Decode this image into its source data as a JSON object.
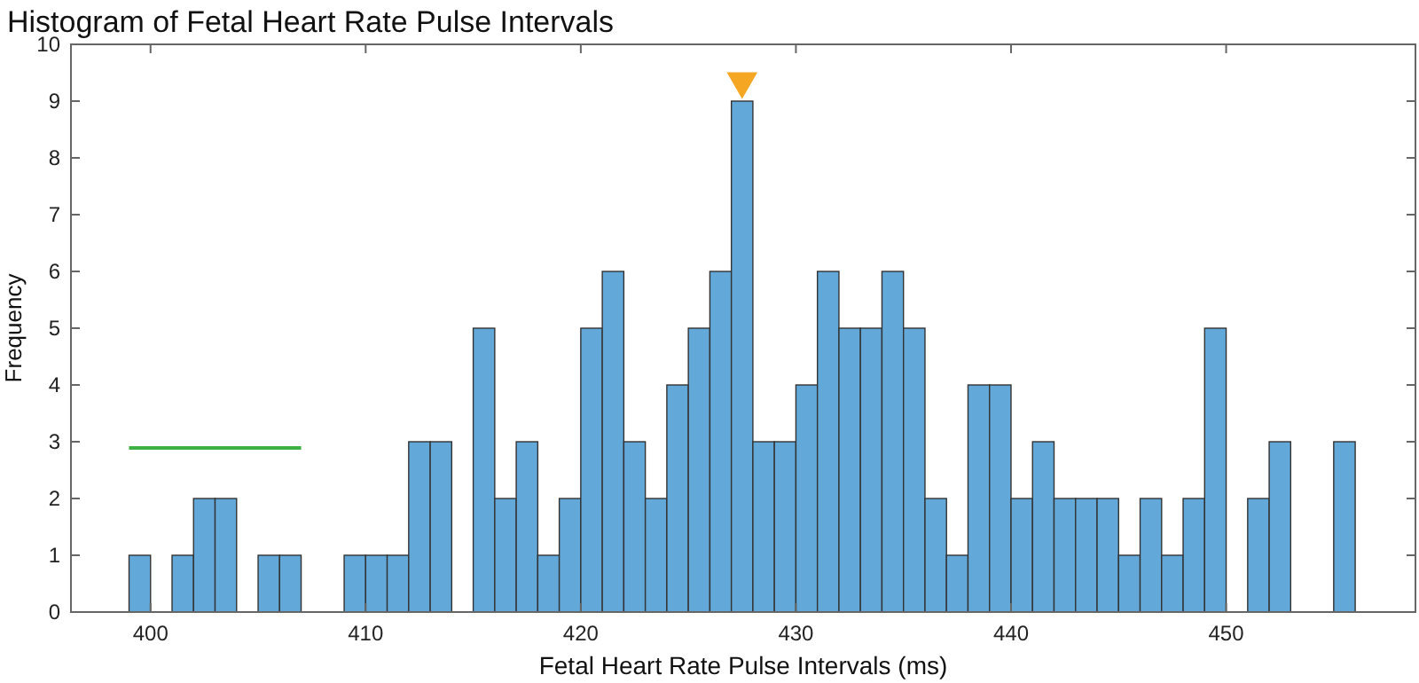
{
  "chart_data": {
    "type": "histogram",
    "title": "Histogram of Fetal Heart Rate Pulse Intervals",
    "xlabel": "Fetal Heart Rate Pulse Intervals (ms)",
    "ylabel": "Frequency",
    "bins": [
      399,
      400,
      401,
      402,
      403,
      404,
      405,
      406,
      407,
      408,
      409,
      410,
      411,
      412,
      413,
      414,
      415,
      416,
      417,
      418,
      419,
      420,
      421,
      422,
      423,
      424,
      425,
      426,
      427,
      428,
      429,
      430,
      431,
      432,
      433,
      434,
      435,
      436,
      437,
      438,
      439,
      440,
      441,
      442,
      443,
      444,
      445,
      446,
      447,
      448,
      449,
      450,
      451,
      452,
      453,
      454,
      455,
      456
    ],
    "values": [
      1,
      0,
      1,
      2,
      2,
      0,
      1,
      1,
      0,
      0,
      1,
      1,
      1,
      3,
      3,
      0,
      5,
      2,
      3,
      1,
      2,
      5,
      6,
      3,
      2,
      4,
      5,
      6,
      9,
      3,
      3,
      4,
      6,
      5,
      5,
      6,
      5,
      2,
      1,
      4,
      4,
      2,
      3,
      2,
      2,
      2,
      1,
      2,
      1,
      2,
      5,
      0,
      2,
      3,
      0,
      0,
      3
    ],
    "color": "#62a8d9",
    "series": [
      {
        "type": "line",
        "x": [
          399,
          407
        ],
        "values": [
          2.89,
          2.89
        ],
        "color": "#3cb043"
      },
      {
        "type": "scatter",
        "x": [
          427.5
        ],
        "values": [
          9.35
        ],
        "color": "#f5a623",
        "marker": "triangle"
      }
    ],
    "xlim": [
      396.3,
      458.8
    ],
    "xticks": [
      400,
      410,
      420,
      430,
      440,
      450
    ],
    "ylim": [
      0,
      10
    ],
    "yticks": [
      0,
      1,
      2,
      3,
      4,
      5,
      6,
      7,
      8,
      9,
      10
    ],
    "grid": false
  }
}
